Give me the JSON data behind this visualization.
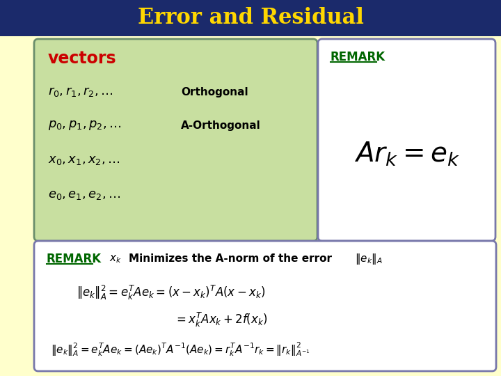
{
  "title": "Error and Residual",
  "title_color": "#FFD700",
  "title_bg": "#1B2A6B",
  "background_color": "#FFFFCC",
  "top_left_box": {
    "label": "vectors",
    "label_color": "#CC0000",
    "bg_color": "#C8DFA0",
    "border_color": "#6B8E6B",
    "rows": [
      {
        "math": "r_0, r_1, r_2, \\ldots",
        "annotation": "Orthogonal"
      },
      {
        "math": "p_0, p_1, p_2, \\ldots",
        "annotation": "A-Orthogonal"
      },
      {
        "math": "x_0, x_1, x_2, \\ldots",
        "annotation": ""
      },
      {
        "math": "e_0, e_1, e_2, \\ldots",
        "annotation": ""
      }
    ]
  },
  "top_right_box": {
    "label": "REMARK",
    "label_color": "#006600",
    "bg_color": "#FFFFFF",
    "border_color": "#7777AA",
    "formula": "Ar_k = e_k"
  },
  "bottom_box": {
    "label": "REMARK",
    "label_color": "#006600",
    "bg_color": "#FFFFFF",
    "border_color": "#7777AA",
    "header_math": "x_k",
    "header_text": "Minimizes the A-norm of the error",
    "header_norm": "\\|e_k\\|_A",
    "line1a": "\\|e_k\\|_A^2 = e_k^T A e_k = (x - x_k)^T A(x - x_k)",
    "line1b": "= x_k^T A x_k + 2f(x_k)",
    "line2": "\\|e_k\\|_A^2 = e_k^T A e_k = (Ae_k)^T A^{-1}(Ae_k) = r_k^T A^{-1} r_k = \\|r_k\\|_{A^{-1}}^2"
  }
}
